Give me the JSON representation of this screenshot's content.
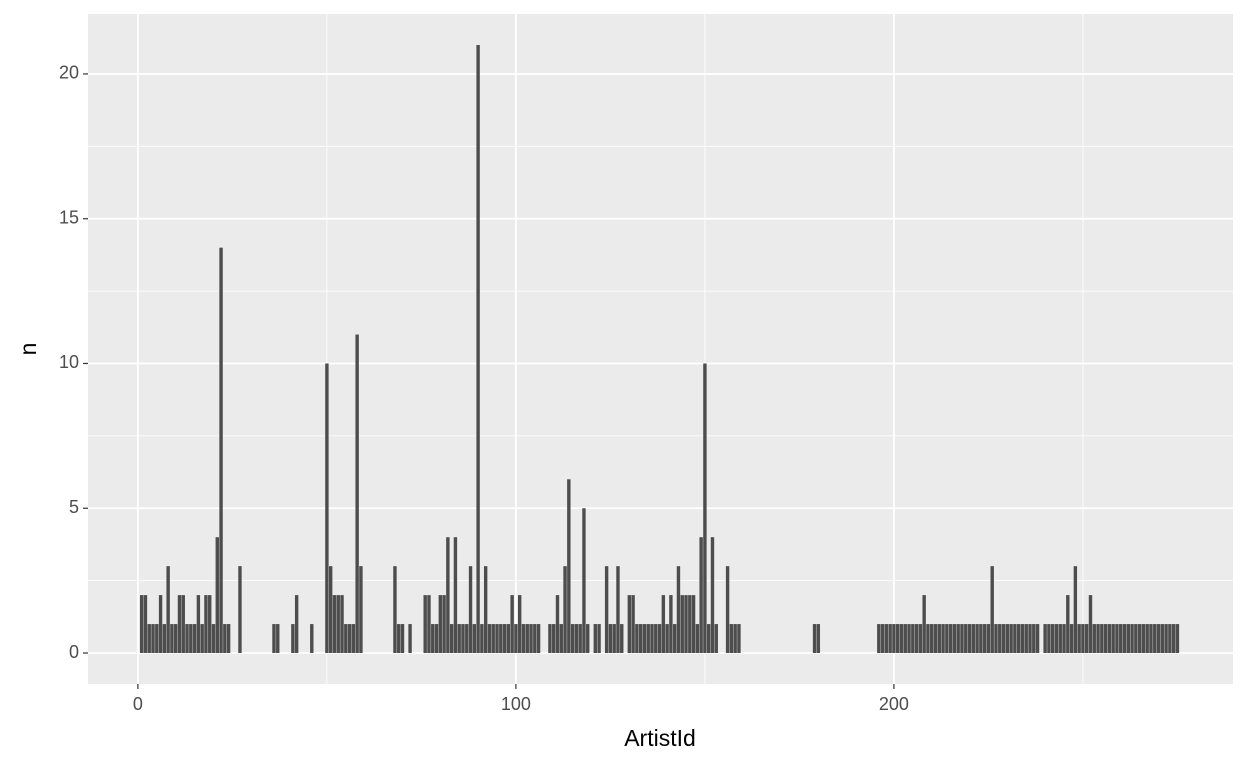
{
  "chart_data": {
    "type": "bar",
    "xlabel": "ArtistId",
    "ylabel": "n",
    "color": "#4d4d4d",
    "grid": true,
    "x": [
      1,
      2,
      3,
      4,
      5,
      6,
      7,
      8,
      9,
      10,
      11,
      12,
      13,
      14,
      15,
      16,
      17,
      18,
      19,
      20,
      21,
      22,
      23,
      24,
      27,
      36,
      37,
      41,
      42,
      46,
      50,
      51,
      52,
      53,
      54,
      55,
      56,
      57,
      58,
      59,
      68,
      69,
      70,
      72,
      76,
      77,
      78,
      79,
      80,
      81,
      82,
      83,
      84,
      85,
      86,
      87,
      88,
      89,
      90,
      91,
      92,
      93,
      94,
      95,
      96,
      97,
      98,
      99,
      100,
      101,
      102,
      103,
      104,
      105,
      106,
      109,
      110,
      111,
      112,
      113,
      114,
      115,
      116,
      117,
      118,
      119,
      121,
      122,
      124,
      125,
      126,
      127,
      128,
      130,
      131,
      132,
      133,
      134,
      135,
      136,
      137,
      138,
      139,
      140,
      141,
      142,
      143,
      144,
      145,
      146,
      147,
      148,
      149,
      150,
      151,
      152,
      153,
      156,
      157,
      158,
      159,
      179,
      180,
      196,
      197,
      198,
      199,
      200,
      201,
      202,
      203,
      204,
      205,
      206,
      207,
      208,
      209,
      210,
      211,
      212,
      213,
      214,
      215,
      216,
      217,
      218,
      219,
      220,
      221,
      222,
      223,
      224,
      225,
      226,
      227,
      228,
      229,
      230,
      231,
      232,
      233,
      234,
      235,
      236,
      237,
      238,
      240,
      241,
      242,
      243,
      244,
      245,
      246,
      247,
      248,
      249,
      250,
      251,
      252,
      253,
      254,
      255,
      256,
      257,
      258,
      259,
      260,
      261,
      262,
      263,
      264,
      265,
      266,
      267,
      268,
      269,
      270,
      271,
      272,
      273,
      274,
      275
    ],
    "values": [
      2,
      2,
      1,
      1,
      1,
      2,
      1,
      3,
      1,
      1,
      2,
      2,
      1,
      1,
      1,
      2,
      1,
      2,
      2,
      1,
      4,
      14,
      1,
      1,
      3,
      1,
      1,
      1,
      2,
      1,
      10,
      3,
      2,
      2,
      2,
      1,
      1,
      1,
      11,
      3,
      3,
      1,
      1,
      1,
      2,
      2,
      1,
      1,
      2,
      2,
      4,
      1,
      4,
      1,
      1,
      1,
      3,
      1,
      21,
      1,
      3,
      1,
      1,
      1,
      1,
      1,
      1,
      2,
      1,
      2,
      1,
      1,
      1,
      1,
      1,
      1,
      1,
      2,
      1,
      3,
      6,
      1,
      1,
      1,
      5,
      1,
      1,
      1,
      3,
      1,
      1,
      3,
      1,
      2,
      2,
      1,
      1,
      1,
      1,
      1,
      1,
      1,
      2,
      1,
      2,
      1,
      3,
      2,
      2,
      2,
      2,
      1,
      4,
      10,
      1,
      4,
      1,
      3,
      1,
      1,
      1,
      1,
      1,
      1,
      1,
      1,
      1,
      1,
      1,
      1,
      1,
      1,
      1,
      1,
      1,
      2,
      1,
      1,
      1,
      1,
      1,
      1,
      1,
      1,
      1,
      1,
      1,
      1,
      1,
      1,
      1,
      1,
      1,
      3,
      1,
      1,
      1,
      1,
      1,
      1,
      1,
      1,
      1,
      1,
      1,
      1,
      1,
      1,
      1,
      1,
      1,
      1,
      2,
      1,
      3,
      1,
      1,
      1,
      2,
      1,
      1,
      1,
      1,
      1,
      1,
      1,
      1,
      1,
      1,
      1,
      1,
      1,
      1,
      1,
      1,
      1,
      1,
      1,
      1,
      1,
      1,
      1
    ],
    "xlim": [
      -13.2,
      289.7
    ],
    "ylim": [
      -1.07,
      22.07
    ],
    "xticks": [
      0,
      100,
      200
    ],
    "yticks": [
      0,
      5,
      10,
      15,
      20
    ]
  }
}
